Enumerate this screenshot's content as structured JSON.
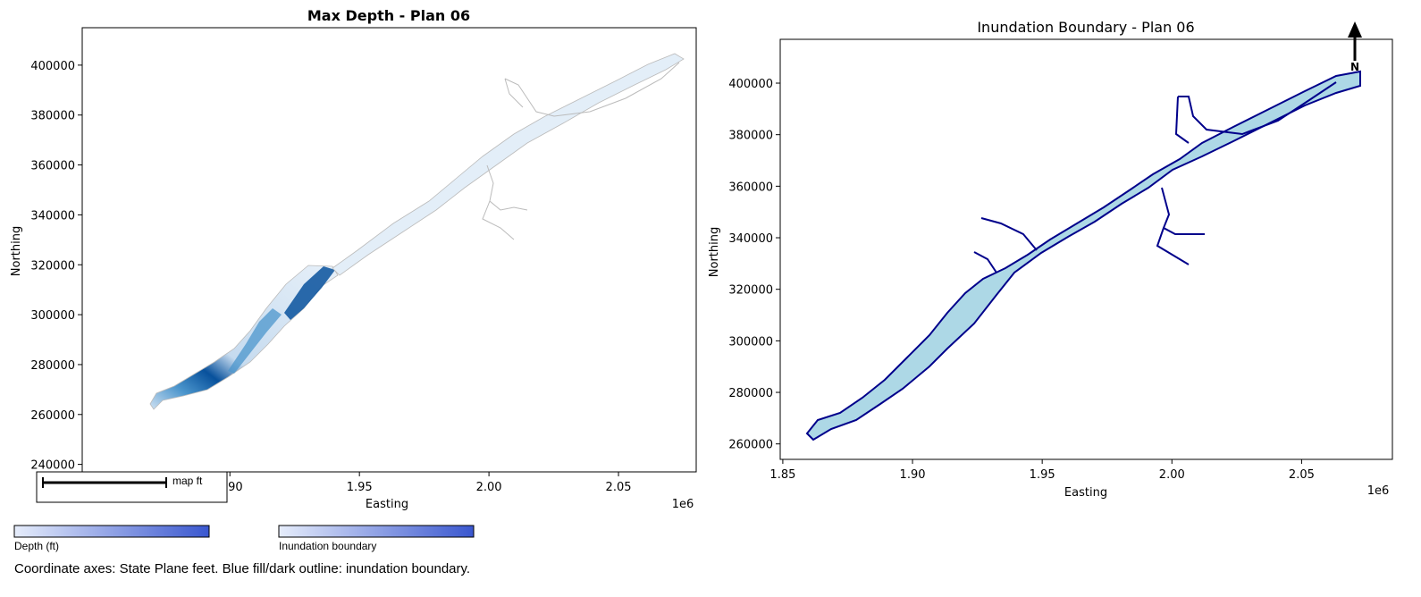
{
  "left_map": {
    "title": "Max Depth - Plan 06",
    "xlabel": "Easting",
    "ylabel": "Northing",
    "x_ticks": [
      "1.90",
      "1.95",
      "2.00",
      "2.05"
    ],
    "x_tick_values": [
      1900000,
      1950000,
      2000000,
      2050000
    ],
    "y_ticks": [
      "240000",
      "260000",
      "280000",
      "300000",
      "320000",
      "340000",
      "360000",
      "380000",
      "400000"
    ],
    "y_tick_values": [
      240000,
      260000,
      280000,
      300000,
      320000,
      340000,
      360000,
      380000,
      400000
    ],
    "x_offset_label": "1e6",
    "x_range": [
      1843000,
      2080000
    ],
    "y_range": [
      237000,
      415000
    ],
    "scalebar_label": "map ft",
    "colors": {
      "depth_light": "#dbe8f5",
      "depth_mid": "#4b95cc",
      "depth_dark": "#08519c",
      "outline": "#bbbbbb"
    }
  },
  "right_map": {
    "title": "Inundation Boundary - Plan 06",
    "xlabel": "Easting",
    "ylabel": "Northing",
    "x_ticks": [
      "1.85",
      "1.90",
      "1.95",
      "2.00",
      "2.05"
    ],
    "x_tick_values": [
      1850000,
      1900000,
      1950000,
      2000000,
      2050000
    ],
    "y_ticks": [
      "260000",
      "280000",
      "300000",
      "320000",
      "340000",
      "360000",
      "380000",
      "400000"
    ],
    "y_tick_values": [
      260000,
      280000,
      300000,
      320000,
      340000,
      360000,
      380000,
      400000
    ],
    "x_offset_label": "1e6",
    "x_range": [
      1849000,
      2085000
    ],
    "y_range": [
      254000,
      417000
    ],
    "north_label": "N",
    "colors": {
      "fill": "#add8e6",
      "outline": "#00008b"
    }
  },
  "legend": {
    "depth_label": "Depth (ft)",
    "inundation_label": "Inundation boundary",
    "colors": {
      "start": "#e6edfb",
      "end": "#3a57cf"
    }
  },
  "footnote": "Coordinate axes: State Plane feet. Blue fill/dark outline: inundation boundary."
}
